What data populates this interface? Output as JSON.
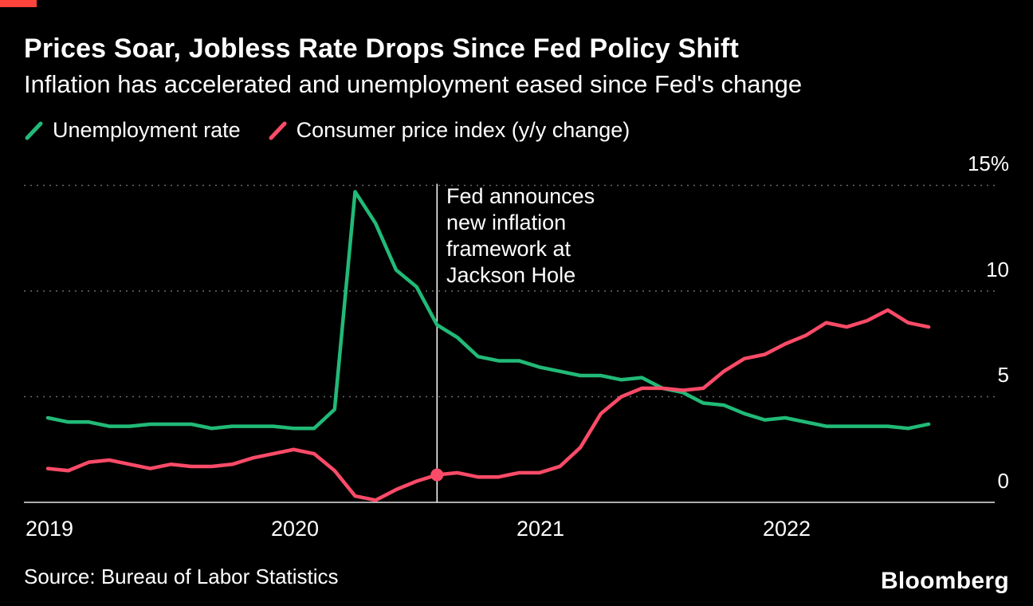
{
  "page": {
    "title": "Prices Soar, Jobless Rate Drops Since Fed Policy Shift",
    "subtitle": "Inflation has accelerated and unemployment eased since Fed's change",
    "source": "Source: Bureau of Labor Statistics",
    "brand": "Bloomberg",
    "accent_color": "#ff433d",
    "background_color": "#000000"
  },
  "legend": [
    {
      "label": "Unemployment rate",
      "color": "#21ba77"
    },
    {
      "label": "Consumer price index (y/y change)",
      "color": "#fa4b68"
    }
  ],
  "annotation": {
    "lines": [
      "Fed announces",
      "new inflation",
      "framework at",
      "Jackson Hole"
    ]
  },
  "chart_data": {
    "type": "line",
    "title": "Prices Soar, Jobless Rate Drops Since Fed Policy Shift",
    "subtitle": "Inflation has accelerated and unemployment eased since Fed's change",
    "x_monthly_start": "2019-01",
    "x_monthly_end": "2022-08",
    "xticks": [
      "2019",
      "2020",
      "2021",
      "2022"
    ],
    "yticks": [
      "15%",
      "10",
      "5",
      "0"
    ],
    "ytick_values": [
      15,
      10,
      5,
      0
    ],
    "ylim": [
      0,
      15
    ],
    "grid": "horizontal-dotted",
    "legend_position": "top-left",
    "annotation_x": "2020-08",
    "annotation_text": "Fed announces new inflation framework at Jackson Hole",
    "annotation_marker_series": "Consumer price index (y/y change)",
    "series": [
      {
        "name": "Unemployment rate",
        "color": "#21ba77",
        "values": [
          4.0,
          3.8,
          3.8,
          3.6,
          3.6,
          3.7,
          3.7,
          3.7,
          3.5,
          3.6,
          3.6,
          3.6,
          3.5,
          3.5,
          4.4,
          14.7,
          13.2,
          11.0,
          10.2,
          8.4,
          7.8,
          6.9,
          6.7,
          6.7,
          6.4,
          6.2,
          6.0,
          6.0,
          5.8,
          5.9,
          5.4,
          5.2,
          4.7,
          4.6,
          4.2,
          3.9,
          4.0,
          3.8,
          3.6,
          3.6,
          3.6,
          3.6,
          3.5,
          3.7
        ]
      },
      {
        "name": "Consumer price index (y/y change)",
        "color": "#fa4b68",
        "values": [
          1.6,
          1.5,
          1.9,
          2.0,
          1.8,
          1.6,
          1.8,
          1.7,
          1.7,
          1.8,
          2.1,
          2.3,
          2.5,
          2.3,
          1.5,
          0.3,
          0.1,
          0.6,
          1.0,
          1.3,
          1.4,
          1.2,
          1.2,
          1.4,
          1.4,
          1.7,
          2.6,
          4.2,
          5.0,
          5.4,
          5.4,
          5.3,
          5.4,
          6.2,
          6.8,
          7.0,
          7.5,
          7.9,
          8.5,
          8.3,
          8.6,
          9.1,
          8.5,
          8.3
        ]
      }
    ]
  }
}
